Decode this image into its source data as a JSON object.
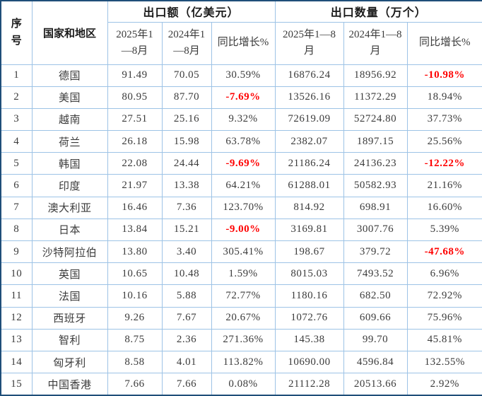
{
  "table": {
    "header": {
      "seq": "序号",
      "country": "国家和地区",
      "export_value_group": "出口额（亿美元）",
      "export_qty_group": "出口数量（万个）",
      "sub": [
        "2025年1—8月",
        "2024年1—8月",
        "同比增长%",
        "2025年1—8月",
        "2024年1—8月",
        "同比增长%"
      ]
    },
    "colors": {
      "outer_border": "#1f4e79",
      "inner_border": "#9dc3e6",
      "text": "#3b3b3b",
      "negative_text": "#ff0000"
    }
  },
  "chart_data": {
    "type": "table",
    "column_groups": [
      "出口额（亿美元）",
      "出口数量（万个）"
    ],
    "columns": [
      "序号",
      "国家和地区",
      "2025年1—8月",
      "2024年1—8月",
      "同比增长%",
      "2025年1—8月",
      "2024年1—8月",
      "同比增长%"
    ],
    "rows": [
      [
        "1",
        "德国",
        "91.49",
        "70.05",
        "30.59%",
        "16876.24",
        "18956.92",
        "-10.98%"
      ],
      [
        "2",
        "美国",
        "80.95",
        "87.70",
        "-7.69%",
        "13526.16",
        "11372.29",
        "18.94%"
      ],
      [
        "3",
        "越南",
        "27.51",
        "25.16",
        "9.32%",
        "72619.09",
        "52724.80",
        "37.73%"
      ],
      [
        "4",
        "荷兰",
        "26.18",
        "15.98",
        "63.78%",
        "2382.07",
        "1897.15",
        "25.56%"
      ],
      [
        "5",
        "韩国",
        "22.08",
        "24.44",
        "-9.69%",
        "21186.24",
        "24136.23",
        "-12.22%"
      ],
      [
        "6",
        "印度",
        "21.97",
        "13.38",
        "64.21%",
        "61288.01",
        "50582.93",
        "21.16%"
      ],
      [
        "7",
        "澳大利亚",
        "16.46",
        "7.36",
        "123.70%",
        "814.92",
        "698.91",
        "16.60%"
      ],
      [
        "8",
        "日本",
        "13.84",
        "15.21",
        "-9.00%",
        "3169.81",
        "3007.76",
        "5.39%"
      ],
      [
        "9",
        "沙特阿拉伯",
        "13.80",
        "3.40",
        "305.41%",
        "198.67",
        "379.72",
        "-47.68%"
      ],
      [
        "10",
        "英国",
        "10.65",
        "10.48",
        "1.59%",
        "8015.03",
        "7493.52",
        "6.96%"
      ],
      [
        "11",
        "法国",
        "10.16",
        "5.88",
        "72.77%",
        "1180.16",
        "682.50",
        "72.92%"
      ],
      [
        "12",
        "西班牙",
        "9.26",
        "7.67",
        "20.67%",
        "1072.76",
        "609.66",
        "75.96%"
      ],
      [
        "13",
        "智利",
        "8.75",
        "2.36",
        "271.36%",
        "145.38",
        "99.70",
        "45.81%"
      ],
      [
        "14",
        "匈牙利",
        "8.58",
        "4.01",
        "113.82%",
        "10690.00",
        "4596.84",
        "132.55%"
      ],
      [
        "15",
        "中国香港",
        "7.66",
        "7.66",
        "0.08%",
        "21112.28",
        "20513.66",
        "2.92%"
      ]
    ]
  }
}
